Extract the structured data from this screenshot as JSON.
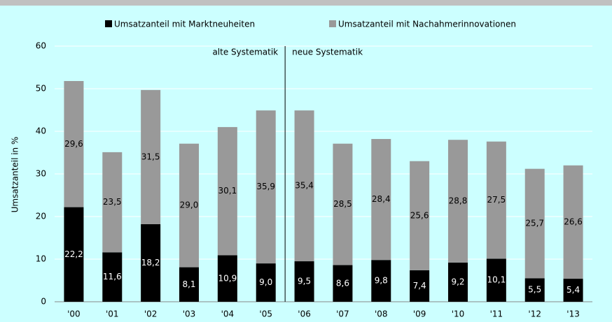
{
  "chart_data": {
    "type": "stacked_bar",
    "ylabel": "Umsatzanteil in %",
    "annotations": [
      "alte Systematik",
      "neue Systematik"
    ],
    "categories": [
      "'00",
      "'01",
      "'02",
      "'03",
      "'04",
      "'05",
      "'06",
      "'07",
      "'08",
      "'09",
      "'10",
      "'11",
      "'12",
      "'13"
    ],
    "series": [
      {
        "name": "Umsatzanteil mit Marktneuheiten",
        "color": "#000000",
        "values": [
          22.2,
          11.6,
          18.2,
          8.1,
          10.9,
          9.0,
          9.5,
          8.6,
          9.8,
          7.4,
          9.2,
          10.1,
          5.5,
          5.4
        ],
        "value_labels": [
          "22,2",
          "11,6",
          "18,2",
          "8,1",
          "10,9",
          "9,0",
          "9,5",
          "8,6",
          "9,8",
          "7,4",
          "9,2",
          "10,1",
          "5,5",
          "5,4"
        ]
      },
      {
        "name": "Umsatzanteil mit Nachahmerinnovationen",
        "color": "#999999",
        "values": [
          29.6,
          23.5,
          31.5,
          29.0,
          30.1,
          35.9,
          35.4,
          28.5,
          28.4,
          25.6,
          28.8,
          27.5,
          25.7,
          26.6
        ],
        "value_labels": [
          "29,6",
          "23,5",
          "31,5",
          "29,0",
          "30,1",
          "35,9",
          "35,4",
          "28,5",
          "28,4",
          "25,6",
          "28,8",
          "27,5",
          "25,7",
          "26,6"
        ]
      }
    ],
    "ylim": [
      0,
      60
    ],
    "yticks": [
      0,
      10,
      20,
      30,
      40,
      50,
      60
    ],
    "grid": true
  }
}
